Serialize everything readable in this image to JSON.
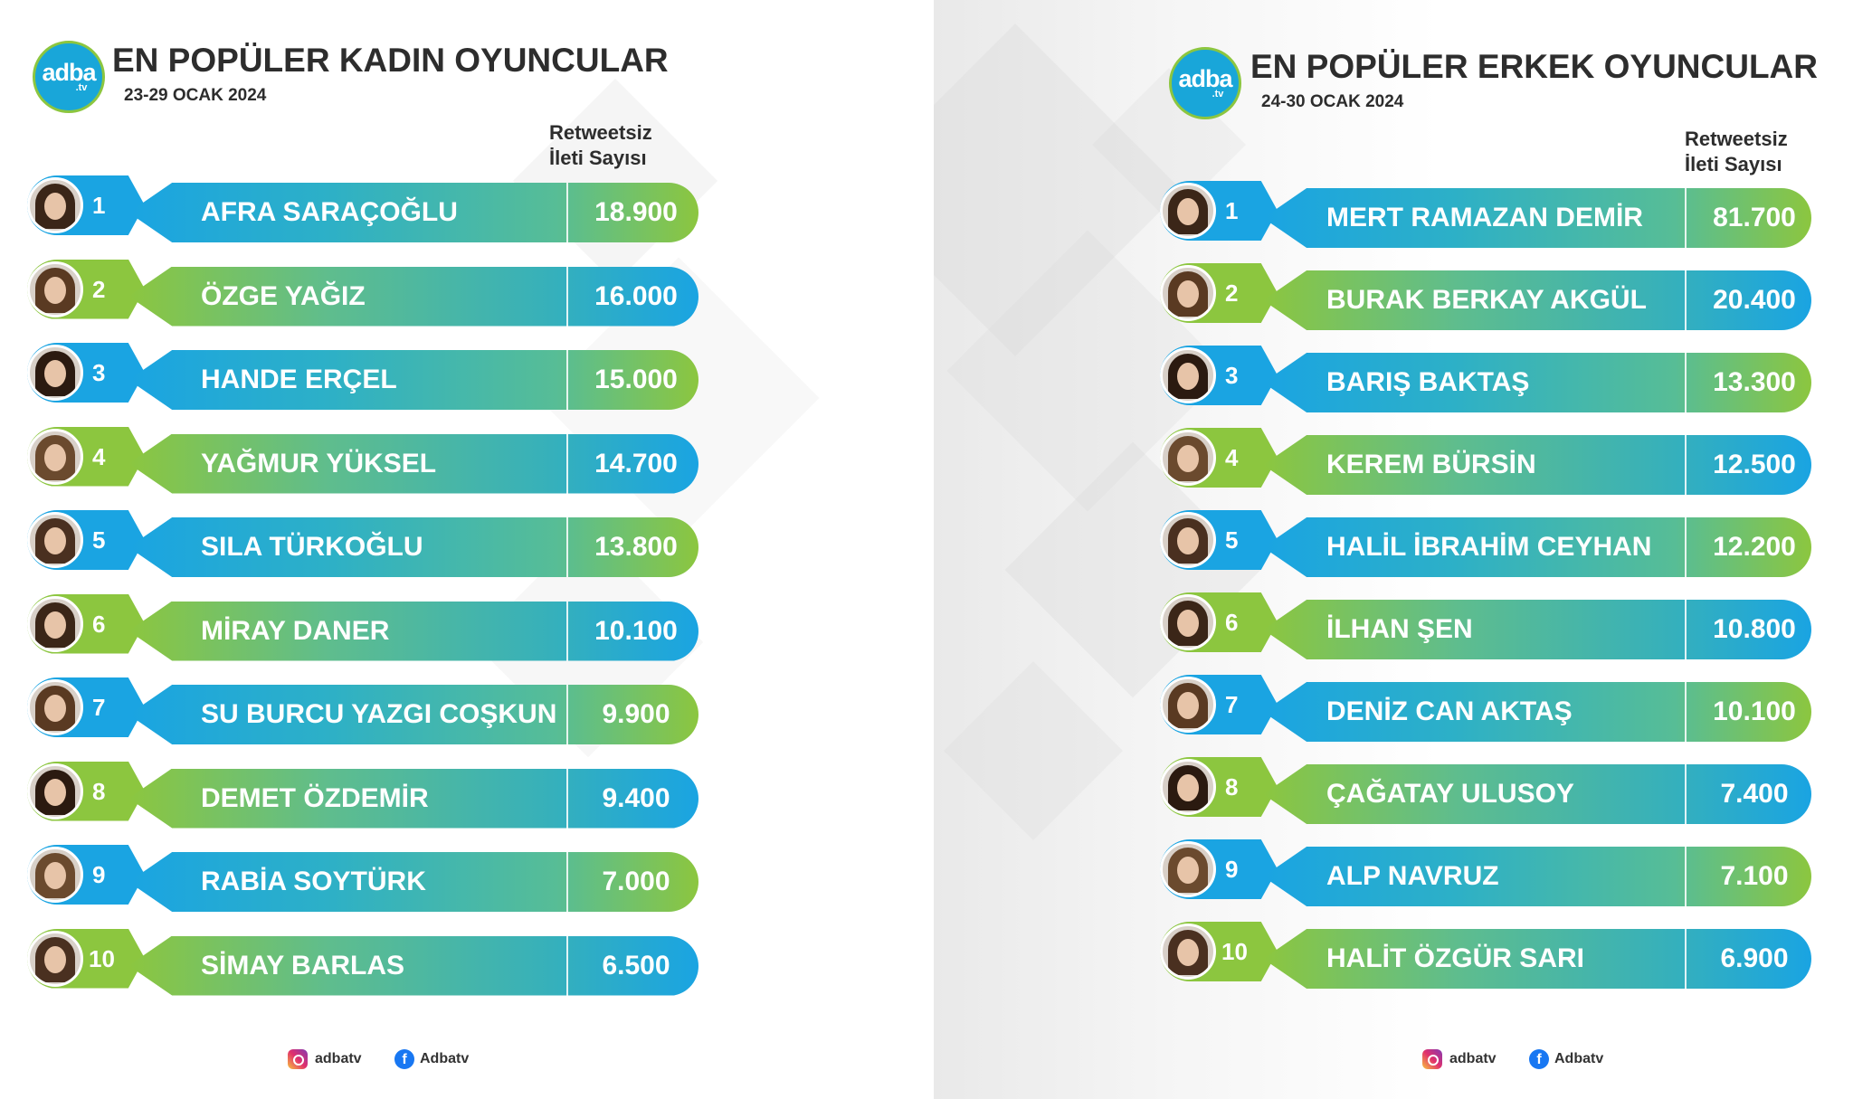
{
  "colors": {
    "blue": "#1aa4e2",
    "green": "#8cc63f"
  },
  "logo": {
    "main": "adba",
    "sub": ".tv"
  },
  "footer": {
    "instagram": "adbatv",
    "facebook": "Adbatv",
    "instagram_icon": "instagram-icon",
    "facebook_icon": "facebook-icon"
  },
  "left": {
    "title": "EN POPÜLER KADIN OYUNCULAR",
    "date": "23-29 OCAK 2024",
    "column_header_1": "Retweetsiz",
    "column_header_2": "İleti Sayısı",
    "rows": [
      {
        "rank": "1",
        "name": "AFRA SARAÇOĞLU",
        "value": "18.900",
        "style": "blue"
      },
      {
        "rank": "2",
        "name": "ÖZGE YAĞIZ",
        "value": "16.000",
        "style": "green"
      },
      {
        "rank": "3",
        "name": "HANDE ERÇEL",
        "value": "15.000",
        "style": "blue"
      },
      {
        "rank": "4",
        "name": "YAĞMUR YÜKSEL",
        "value": "14.700",
        "style": "green"
      },
      {
        "rank": "5",
        "name": "SILA TÜRKOĞLU",
        "value": "13.800",
        "style": "blue"
      },
      {
        "rank": "6",
        "name": "MİRAY DANER",
        "value": "10.100",
        "style": "green"
      },
      {
        "rank": "7",
        "name": "SU BURCU YAZGI COŞKUN",
        "value": "9.900",
        "style": "blue"
      },
      {
        "rank": "8",
        "name": "DEMET ÖZDEMİR",
        "value": "9.400",
        "style": "green"
      },
      {
        "rank": "9",
        "name": "RABİA SOYTÜRK",
        "value": "7.000",
        "style": "blue"
      },
      {
        "rank": "10",
        "name": "SİMAY BARLAS",
        "value": "6.500",
        "style": "green"
      }
    ]
  },
  "right": {
    "title": "EN POPÜLER ERKEK OYUNCULAR",
    "date": "24-30 OCAK 2024",
    "column_header_1": "Retweetsiz",
    "column_header_2": "İleti Sayısı",
    "rows": [
      {
        "rank": "1",
        "name": "MERT RAMAZAN DEMİR",
        "value": "81.700",
        "style": "blue"
      },
      {
        "rank": "2",
        "name": "BURAK BERKAY AKGÜL",
        "value": "20.400",
        "style": "green"
      },
      {
        "rank": "3",
        "name": "BARIŞ BAKTAŞ",
        "value": "13.300",
        "style": "blue"
      },
      {
        "rank": "4",
        "name": "KEREM BÜRSİN",
        "value": "12.500",
        "style": "green"
      },
      {
        "rank": "5",
        "name": "HALİL İBRAHİM CEYHAN",
        "value": "12.200",
        "style": "blue"
      },
      {
        "rank": "6",
        "name": "İLHAN ŞEN",
        "value": "10.800",
        "style": "green"
      },
      {
        "rank": "7",
        "name": "DENİZ CAN AKTAŞ",
        "value": "10.100",
        "style": "blue"
      },
      {
        "rank": "8",
        "name": "ÇAĞATAY ULUSOY",
        "value": "7.400",
        "style": "green"
      },
      {
        "rank": "9",
        "name": "ALP NAVRUZ",
        "value": "7.100",
        "style": "blue"
      },
      {
        "rank": "10",
        "name": "HALİT ÖZGÜR SARI",
        "value": "6.900",
        "style": "green"
      }
    ]
  }
}
